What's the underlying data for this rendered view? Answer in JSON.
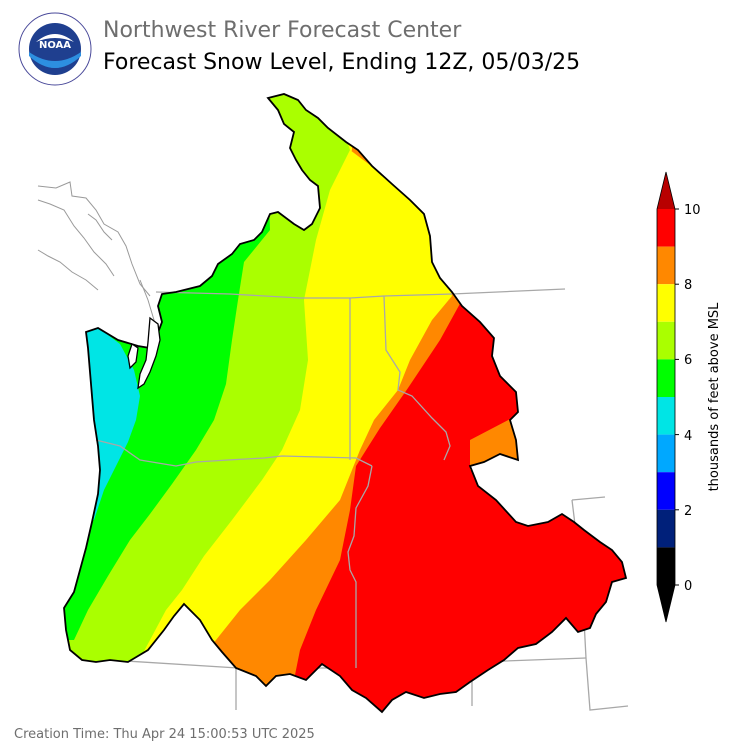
{
  "header": {
    "agency": "Northwest River Forecast Center",
    "title": "Forecast Snow Level, Ending 12Z, 05/03/25"
  },
  "logo": {
    "name": "noaa-logo",
    "wordmark": "NOAA",
    "ring_text": "NATIONAL OCEANIC AND ATMOSPHERIC ADMINISTRATION · U.S. DEPARTMENT OF COMMERCE"
  },
  "legend": {
    "label": "thousands of feet above MSL",
    "ticks": [
      "0",
      "2",
      "4",
      "6",
      "8",
      "10"
    ],
    "colors": [
      "#000000",
      "#00207a",
      "#0000ff",
      "#00a8ff",
      "#00e5e5",
      "#00ff00",
      "#aaff00",
      "#ffff00",
      "#ff8800",
      "#ff0000",
      "#b80000"
    ]
  },
  "footer": {
    "creation_time": "Creation Time: Thu Apr 24 15:00:53 UTC 2025"
  }
}
